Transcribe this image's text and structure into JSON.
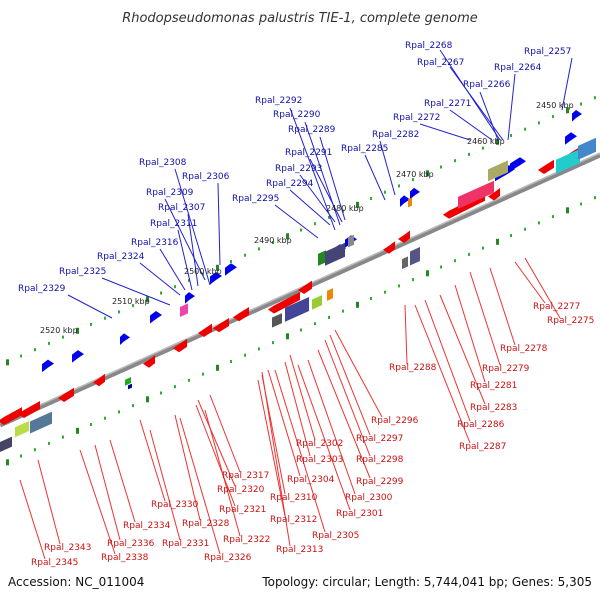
{
  "title": "Rhodopseudomonas palustris TIE-1, complete genome",
  "footer": {
    "accession": "Accession: NC_011004",
    "summary": "Topology: circular; Length: 5,744,041 bp; Genes: 5,305"
  },
  "colors": {
    "forward_gene": "#0000ee",
    "reverse_gene": "#ee0000",
    "forward_label": "#1010aa",
    "reverse_label": "#cc1111",
    "backbone": "#888888",
    "tick": "#228822"
  },
  "kbp_ticks": [
    "2450 kbp",
    "2460 kbp",
    "2470 kbp",
    "2480 kbp",
    "2490 kbp",
    "2500 kbp",
    "2510 kbp",
    "2520 kbp"
  ],
  "top_labels": [
    "Rpal_2268",
    "Rpal_2257",
    "Rpal_2267",
    "Rpal_2264",
    "Rpal_2266",
    "Rpal_2271",
    "Rpal_2272",
    "Rpal_2292",
    "Rpal_2290",
    "Rpal_2289",
    "Rpal_2282",
    "Rpal_2285",
    "Rpal_2291",
    "Rpal_2293",
    "Rpal_2294",
    "Rpal_2295",
    "Rpal_2308",
    "Rpal_2306",
    "Rpal_2309",
    "Rpal_2307",
    "Rpal_2311",
    "Rpal_2316",
    "Rpal_2324",
    "Rpal_2325",
    "Rpal_2329"
  ],
  "bottom_labels": [
    "Rpal_2277",
    "Rpal_2275",
    "Rpal_2278",
    "Rpal_2279",
    "Rpal_2288",
    "Rpal_2281",
    "Rpal_2283",
    "Rpal_2286",
    "Rpal_2287",
    "Rpal_2296",
    "Rpal_2297",
    "Rpal_2298",
    "Rpal_2302",
    "Rpal_2303",
    "Rpal_2299",
    "Rpal_2317",
    "Rpal_2304",
    "Rpal_2320",
    "Rpal_2310",
    "Rpal_2300",
    "Rpal_2330",
    "Rpal_2321",
    "Rpal_2312",
    "Rpal_2301",
    "Rpal_2334",
    "Rpal_2328",
    "Rpal_2305",
    "Rpal_2336",
    "Rpal_2331",
    "Rpal_2322",
    "Rpal_2313",
    "Rpal_2343",
    "Rpal_2338",
    "Rpal_2326",
    "Rpal_2345"
  ]
}
